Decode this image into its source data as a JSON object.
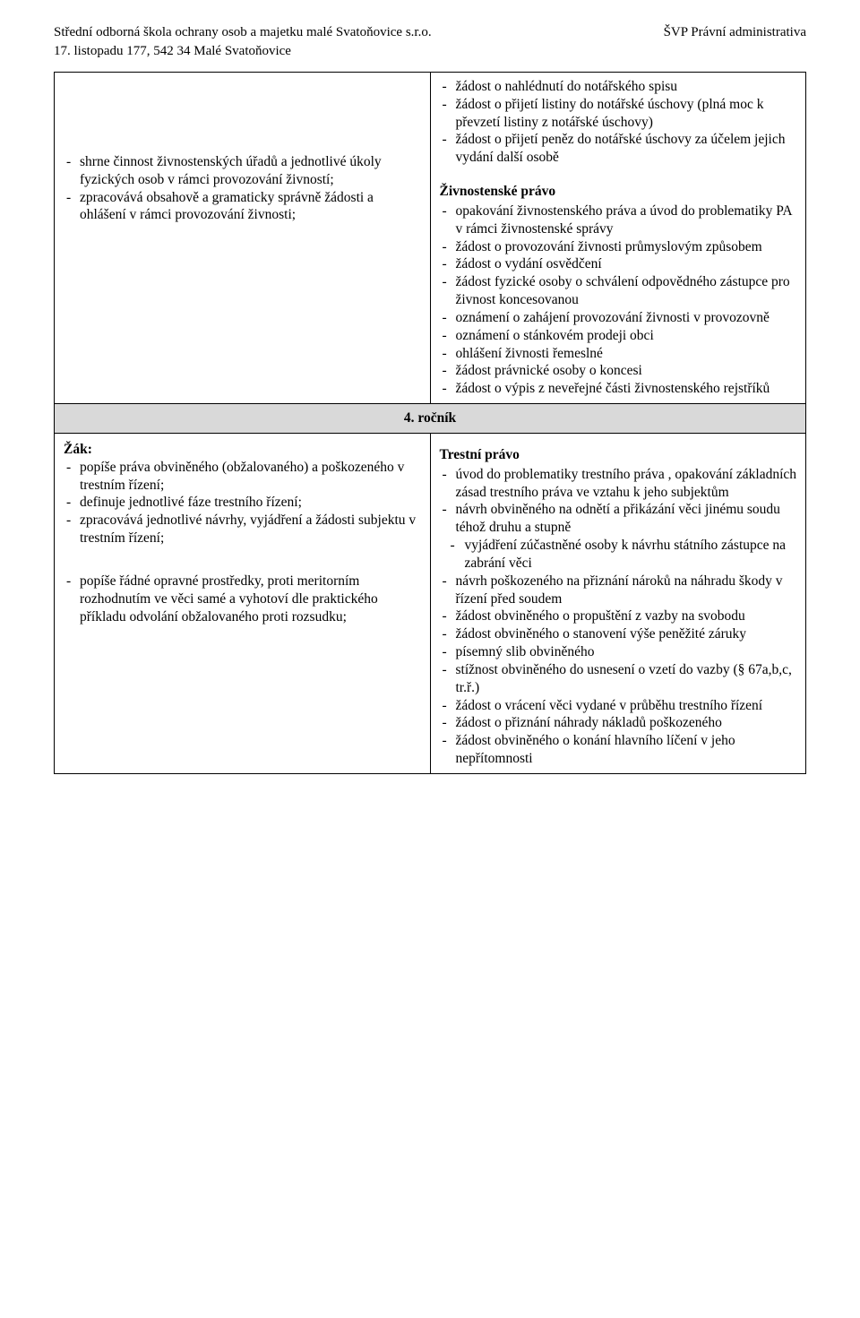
{
  "header": {
    "school": "Střední odborná škola ochrany osob a majetku malé Svatoňovice s.r.o.",
    "program": "ŠVP  Právní administrativa",
    "address": "17. listopadu 177,  542 34  Malé Svatoňovice"
  },
  "row1": {
    "left": {
      "items": [
        "shrne činnost živnostenských úřadů  a jednotlivé úkoly fyzických osob v rámci provozování živností;",
        "zpracovává obsahově  a gramaticky správně žádosti a ohlášení v rámci provozování živnosti;"
      ]
    },
    "right": {
      "introItems": [
        "žádost o nahlédnutí do notářského spisu",
        "žádost o přijetí listiny do notářské úschovy (plná moc k převzetí listiny z notářské úschovy)",
        "žádost o přijetí peněz do notářské úschovy za účelem jejich vydání další osobě"
      ],
      "sectionTitle": "Živnostenské právo",
      "items": [
        "opakování živnostenského práva a úvod do problematiky PA v rámci živnostenské správy",
        "žádost  o provozování živnosti průmyslovým způsobem",
        "žádost o vydání osvědčení",
        "žádost fyzické osoby o schválení odpovědného zástupce pro živnost koncesovanou",
        "oznámení  o zahájení provozování  živnosti v provozovně",
        "oznámení o stánkovém prodeji obci",
        "ohlášení živnosti řemeslné",
        "žádost právnické osoby o koncesi",
        "žádost o výpis z neveřejné části živnostenského rejstříků"
      ]
    }
  },
  "divider": "4. ročník",
  "row2": {
    "left": {
      "zak": "Žák:",
      "itemsA": [
        "popíše práva obviněného (obžalovaného) a poškozeného v trestním řízení;",
        "definuje jednotlivé fáze trestního řízení;",
        "zpracovává  jednotlivé návrhy, vyjádření  a žádosti subjektu v trestním řízení;"
      ],
      "itemsB": [
        "popíše řádné opravné prostředky, proti meritorním rozhodnutím ve věci samé a vyhotoví dle praktického příkladu odvolání obžalovaného proti rozsudku;"
      ]
    },
    "right": {
      "sectionTitle": "Trestní právo",
      "items": [
        {
          "text": "úvod  do problematiky trestního práva , opakování základních zásad trestního práva ve vztahu k jeho subjektům"
        },
        {
          "text": "návrh obviněného na odnětí a přikázání věci jinému soudu téhož druhu a stupně"
        },
        {
          "text": "vyjádření zúčastněné osoby  k návrhu státního zástupce na zabrání věci",
          "indent": true
        },
        {
          "text": "návrh poškozeného na přiznání nároků na náhradu  škody v řízení před soudem"
        },
        {
          "text": "žádost obviněného o propuštění z vazby na svobodu"
        },
        {
          "text": "žádost obviněného o stanovení výše peněžité záruky"
        },
        {
          "text": "písemný slib obviněného"
        },
        {
          "text": "stížnost obviněného do usnesení o vzetí do vazby (§ 67a,b,c, tr.ř.)"
        },
        {
          "text": "žádost o vrácení věci vydané v průběhu trestního řízení"
        },
        {
          "text": "žádost o přiznání  náhrady nákladů poškozeného"
        },
        {
          "text": "žádost obviněného o konání hlavního líčení v jeho nepřítomnosti"
        }
      ]
    }
  }
}
